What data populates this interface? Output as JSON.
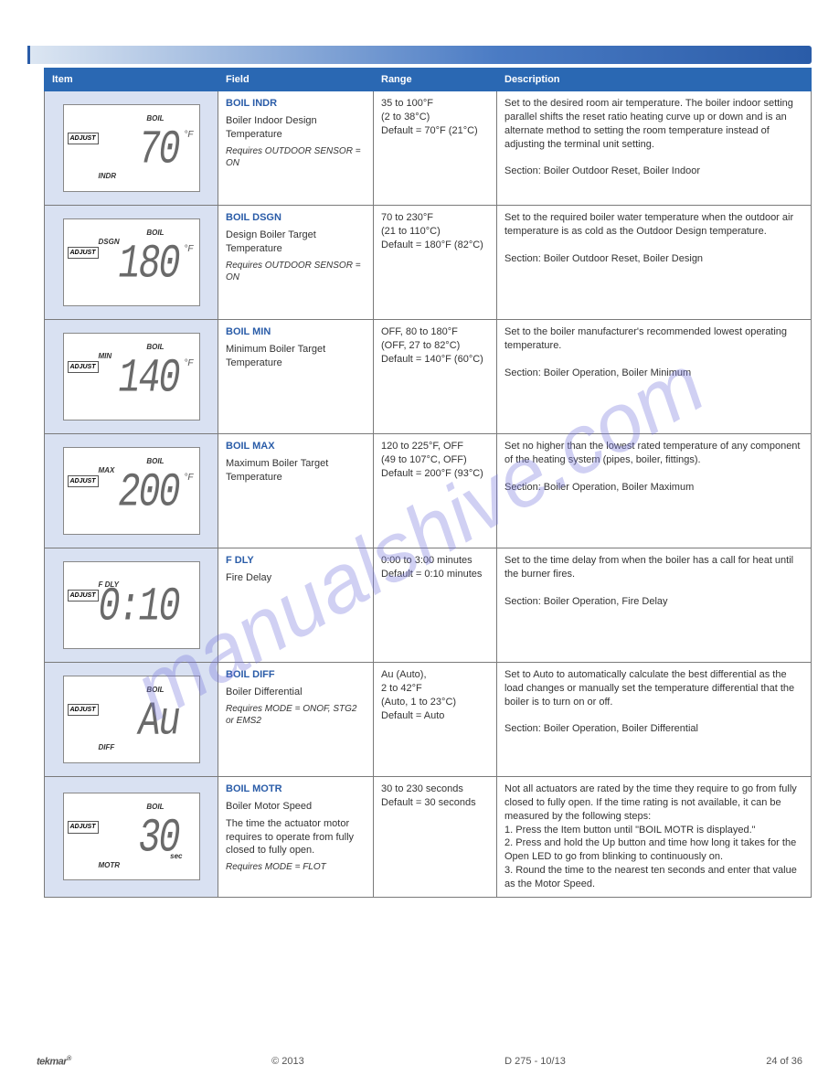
{
  "watermark": "manualshive.com",
  "headers": [
    "Item",
    "Field",
    "Range",
    "Description"
  ],
  "col_widths": [
    "190px",
    "150px",
    "120px",
    "auto"
  ],
  "colors": {
    "header_bg": "#2a68b3",
    "lcd_cell_bg": "#d9e1f2",
    "accent": "#2a5ca8"
  },
  "rows": [
    {
      "lcd": {
        "adj": "ADJUST",
        "tr": "BOIL",
        "bl": "INDR",
        "digits": "70",
        "unit": "°F"
      },
      "name": "BOIL INDR",
      "desc": "Boiler Indoor Design Temperature",
      "req": "Requires OUTDOOR SENSOR = ON",
      "range": "35 to 100°F\n(2 to 38°C)\nDefault = 70°F (21°C)",
      "description": "Set to the desired room air temperature. The boiler indoor setting parallel shifts the reset ratio heating curve up or down and is an alternate method to setting the room temperature instead of adjusting the terminal unit setting.\n\nSection: Boiler Outdoor Reset, Boiler Indoor"
    },
    {
      "lcd": {
        "adj": "ADJUST",
        "tl": "DSGN",
        "tr": "BOIL",
        "digits": "180",
        "unit": "°F"
      },
      "name": "BOIL DSGN",
      "desc": "Design Boiler Target Temperature",
      "req": "Requires OUTDOOR SENSOR = ON",
      "range": "70 to 230°F\n(21 to 110°C)\nDefault = 180°F (82°C)",
      "description": "Set to the required boiler water temperature when the outdoor air temperature is as cold as the Outdoor Design temperature.\n\nSection: Boiler Outdoor Reset, Boiler Design"
    },
    {
      "lcd": {
        "adj": "ADJUST",
        "tl": "MIN",
        "tr": "BOIL",
        "digits": "140",
        "unit": "°F"
      },
      "name": "BOIL MIN",
      "desc": "Minimum Boiler Target Temperature",
      "req": "",
      "range": "OFF, 80 to 180°F\n(OFF, 27 to 82°C)\nDefault = 140°F (60°C)",
      "description": "Set to the boiler manufacturer's recommended lowest operating temperature.\n\nSection: Boiler Operation, Boiler Minimum"
    },
    {
      "lcd": {
        "adj": "ADJUST",
        "tl": "MAX",
        "tr": "BOIL",
        "digits": "200",
        "unit": "°F"
      },
      "name": "BOIL MAX",
      "desc": "Maximum Boiler Target Temperature",
      "req": "",
      "range": "120 to 225°F, OFF\n(49 to 107°C, OFF)\nDefault = 200°F (93°C)",
      "description": "Set no higher than the lowest rated temperature of any component of the heating system (pipes, boiler, fittings).\n\nSection: Boiler Operation, Boiler Maximum"
    },
    {
      "lcd": {
        "adj": "ADJUST",
        "tl": "F DLY",
        "digits": "0:10",
        "unit": ""
      },
      "name": "F DLY",
      "desc": "Fire Delay",
      "req": "",
      "range": "0:00 to 3:00 minutes\nDefault = 0:10 minutes",
      "description": "Set to the time delay from when the boiler has a call for heat until the burner fires.\n\nSection: Boiler Operation, Fire Delay"
    },
    {
      "lcd": {
        "adj": "ADJUST",
        "tr": "BOIL",
        "bl": "DIFF",
        "digits": "Au",
        "unit": "",
        "is_text": true
      },
      "name": "BOIL DIFF",
      "desc": "Boiler Differential",
      "req": "Requires MODE = ONOF, STG2 or EMS2",
      "range": "Au (Auto),\n2 to 42°F\n(Auto, 1 to 23°C)\nDefault = Auto",
      "description": "Set to Auto to automatically calculate the best differential as the load changes or manually set the temperature differential that the boiler is to turn on or off.\n\nSection: Boiler Operation, Boiler Differential"
    },
    {
      "lcd": {
        "adj": "ADJUST",
        "tr": "BOIL",
        "bl": "MOTR",
        "digits": "30",
        "br": "sec"
      },
      "name": "BOIL MOTR",
      "desc": "Boiler Motor Speed\nThe time the actuator motor requires to operate from fully closed to fully open.",
      "req": "Requires MODE = FLOT",
      "range": "30 to 230 seconds\nDefault = 30 seconds",
      "description": "Not all actuators are rated by the time they require to go from fully closed to fully open. If the time rating is not available, it can be measured by the following steps:\n1. Press the Item button until \"BOIL MOTR is displayed.\"\n2. Press and hold the Up button and time how long it takes for the Open LED to go from blinking to continuously on.\n3. Round the time to the nearest ten seconds and enter that value as the Motor Speed."
    }
  ],
  "footer": {
    "brand": "tekmar",
    "copyright": "© 2013",
    "doc": "D 275 - 10/13",
    "page": "24 of 36"
  }
}
